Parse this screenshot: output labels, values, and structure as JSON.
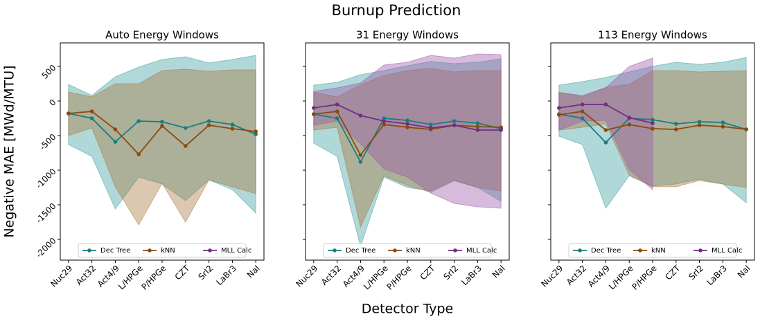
{
  "title": "Burnup Prediction",
  "x_label": "Detector Type",
  "y_label": "Negative MAE [MWd/MTU]",
  "chart_data": [
    {
      "type": "line",
      "title": "Auto Energy Windows",
      "categories": [
        "Nuc29",
        "Act32",
        "Act4/9",
        "L/HPGe",
        "P/HPGe",
        "CZT",
        "SrI2",
        "LaBr3",
        "NaI"
      ],
      "ylim": [
        -2300,
        840
      ],
      "yticks": [
        500,
        0,
        -500,
        -1000,
        -1500,
        -2000
      ],
      "series": [
        {
          "name": "Dec Tree",
          "color": "#177e80",
          "band_color": "#3a9ea0",
          "values": [
            -180,
            -250,
            -590,
            -290,
            -300,
            -390,
            -290,
            -340,
            -480
          ],
          "upper": [
            240,
            80,
            350,
            490,
            600,
            640,
            550,
            600,
            660
          ],
          "lower": [
            -630,
            -800,
            -1560,
            -1100,
            -1200,
            -1440,
            -1140,
            -1280,
            -1620
          ]
        },
        {
          "name": "kNN",
          "color": "#8b4a0e",
          "band_color": "#a8763a",
          "values": [
            -180,
            -150,
            -410,
            -770,
            -360,
            -650,
            -350,
            -400,
            -440
          ],
          "upper": [
            130,
            60,
            250,
            250,
            440,
            460,
            430,
            450,
            450
          ],
          "lower": [
            -500,
            -390,
            -1240,
            -1790,
            -1190,
            -1750,
            -1140,
            -1240,
            -1340
          ]
        },
        {
          "name": "MLL Calc",
          "color": "#732c85",
          "band_color": "#9b55a8",
          "values": [
            null,
            null,
            null,
            null,
            null,
            null,
            null,
            null,
            null
          ],
          "upper": [
            null,
            null,
            null,
            null,
            null,
            null,
            null,
            null,
            null
          ],
          "lower": [
            null,
            null,
            null,
            null,
            null,
            null,
            null,
            null,
            null
          ]
        }
      ]
    },
    {
      "type": "line",
      "title": "31 Energy Windows",
      "categories": [
        "Nuc29",
        "Act32",
        "Act4/9",
        "L/HPGe",
        "P/HPGe",
        "CZT",
        "SrI2",
        "LaBr3",
        "NaI"
      ],
      "ylim": [
        -2300,
        840
      ],
      "yticks": [
        500,
        0,
        -500,
        -1000,
        -1500,
        -2000
      ],
      "series": [
        {
          "name": "Dec Tree",
          "color": "#177e80",
          "band_color": "#3a9ea0",
          "values": [
            -190,
            -250,
            -880,
            -250,
            -280,
            -340,
            -290,
            -320,
            -400
          ],
          "upper": [
            230,
            270,
            380,
            440,
            510,
            570,
            540,
            560,
            610
          ],
          "lower": [
            -610,
            -800,
            -2100,
            -1100,
            -1250,
            -1300,
            -1150,
            -1250,
            -1450
          ]
        },
        {
          "name": "kNN",
          "color": "#8b4a0e",
          "band_color": "#a8763a",
          "values": [
            -190,
            -150,
            -780,
            -340,
            -380,
            -410,
            -350,
            -370,
            -380
          ],
          "upper": [
            130,
            60,
            230,
            370,
            440,
            470,
            420,
            440,
            440
          ],
          "lower": [
            -420,
            -380,
            -1820,
            -1080,
            -1220,
            -1320,
            -1150,
            -1250,
            -1300
          ]
        },
        {
          "name": "MLL Calc",
          "color": "#732c85",
          "band_color": "#9b55a8",
          "values": [
            -100,
            -50,
            -210,
            -290,
            -330,
            -390,
            -350,
            -420,
            -420
          ],
          "upper": [
            140,
            190,
            260,
            520,
            560,
            660,
            620,
            680,
            670
          ],
          "lower": [
            -350,
            -290,
            -620,
            -980,
            -1100,
            -1330,
            -1480,
            -1530,
            -1550
          ]
        }
      ]
    },
    {
      "type": "line",
      "title": "113 Energy Windows",
      "categories": [
        "Nuc29",
        "Act32",
        "Act4/9",
        "L/HPGe",
        "P/HPGe",
        "CZT",
        "SrI2",
        "LaBr3",
        "NaI"
      ],
      "ylim": [
        -2300,
        840
      ],
      "yticks": [
        500,
        0,
        -500,
        -1000,
        -1500,
        -2000
      ],
      "series": [
        {
          "name": "Dec Tree",
          "color": "#177e80",
          "band_color": "#3a9ea0",
          "values": [
            -190,
            -250,
            -600,
            -250,
            -270,
            -330,
            -300,
            -310,
            -410
          ],
          "upper": [
            230,
            280,
            340,
            420,
            500,
            560,
            530,
            560,
            630
          ],
          "lower": [
            -510,
            -630,
            -1550,
            -1080,
            -1230,
            -1200,
            -1130,
            -1200,
            -1470
          ]
        },
        {
          "name": "kNN",
          "color": "#8b4a0e",
          "band_color": "#a8763a",
          "values": [
            -200,
            -150,
            -420,
            -340,
            -400,
            -410,
            -350,
            -370,
            -410
          ],
          "upper": [
            130,
            60,
            200,
            240,
            440,
            440,
            420,
            430,
            440
          ],
          "lower": [
            -420,
            -380,
            -330,
            -1070,
            -1240,
            -1240,
            -1150,
            -1200,
            -1250
          ]
        },
        {
          "name": "MLL Calc",
          "color": "#732c85",
          "band_color": "#9b55a8",
          "values": [
            -100,
            -50,
            -50,
            -240,
            -320,
            null,
            null,
            null,
            null
          ],
          "upper": [
            120,
            80,
            190,
            500,
            620,
            null,
            null,
            null,
            null
          ],
          "lower": [
            -420,
            -290,
            -280,
            -990,
            -1280,
            null,
            null,
            null,
            null
          ]
        }
      ]
    }
  ]
}
